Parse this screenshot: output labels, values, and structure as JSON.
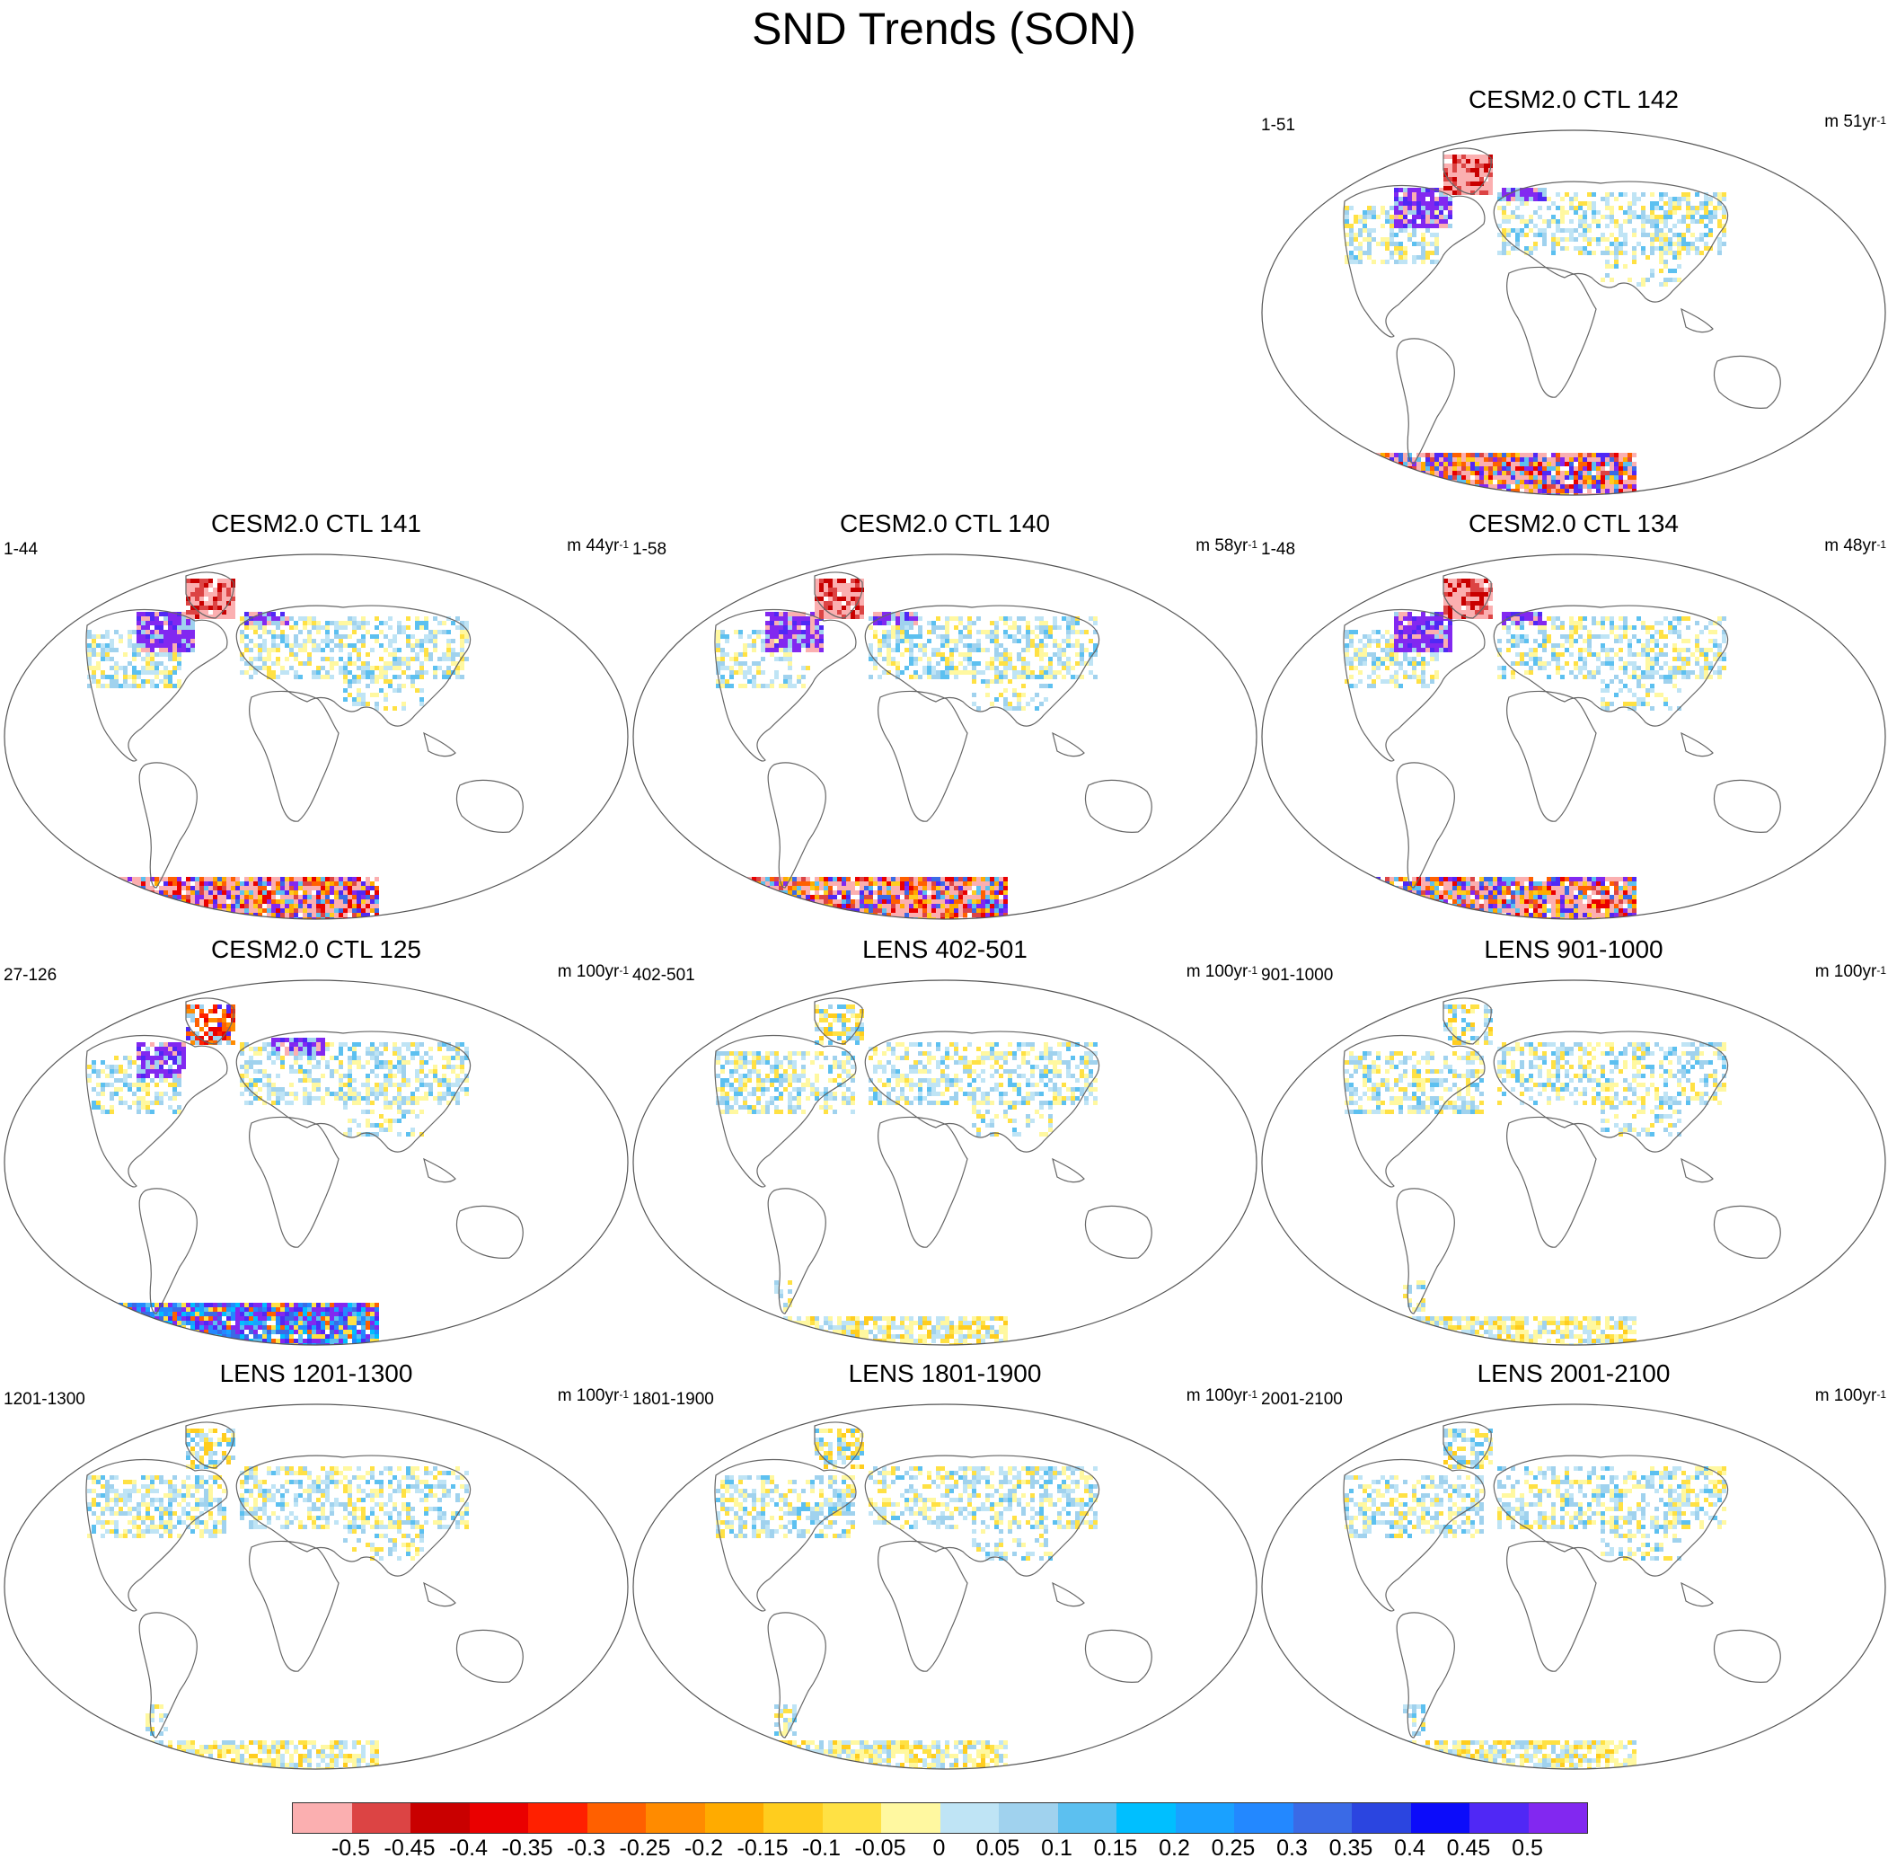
{
  "title": "SND Trends (SON)",
  "panels": [
    {
      "id": "ctl142",
      "title": "CESM2.0 CTL 142",
      "years": "1-51",
      "unit_prefix": "m 51yr",
      "unit_sup": "-1",
      "style": "ctl"
    },
    {
      "id": "ctl141",
      "title": "CESM2.0 CTL 141",
      "years": "1-44",
      "unit_prefix": "m 44yr",
      "unit_sup": "-1",
      "style": "ctl"
    },
    {
      "id": "ctl140",
      "title": "CESM2.0 CTL 140",
      "years": "1-58",
      "unit_prefix": "m 58yr",
      "unit_sup": "-1",
      "style": "ctl"
    },
    {
      "id": "ctl134",
      "title": "CESM2.0 CTL 134",
      "years": "1-48",
      "unit_prefix": "m 48yr",
      "unit_sup": "-1",
      "style": "ctl"
    },
    {
      "id": "ctl125",
      "title": "CESM2.0 CTL 125",
      "years": "27-126",
      "unit_prefix": "m 100yr",
      "unit_sup": "-1",
      "style": "ctl-blue"
    },
    {
      "id": "lens402",
      "title": "LENS 402-501",
      "years": "402-501",
      "unit_prefix": "m 100yr",
      "unit_sup": "-1",
      "style": "lens"
    },
    {
      "id": "lens901",
      "title": "LENS 901-1000",
      "years": "901-1000",
      "unit_prefix": "m 100yr",
      "unit_sup": "-1",
      "style": "lens"
    },
    {
      "id": "lens1201",
      "title": "LENS 1201-1300",
      "years": "1201-1300",
      "unit_prefix": "m 100yr",
      "unit_sup": "-1",
      "style": "lens"
    },
    {
      "id": "lens1801",
      "title": "LENS 1801-1900",
      "years": "1801-1900",
      "unit_prefix": "m 100yr",
      "unit_sup": "-1",
      "style": "lens"
    },
    {
      "id": "lens2001",
      "title": "LENS 2001-2100",
      "years": "2001-2100",
      "unit_prefix": "m 100yr",
      "unit_sup": "-1",
      "style": "lens"
    }
  ],
  "colorbar": {
    "colors": [
      "#fbafb0",
      "#dc4444",
      "#c90000",
      "#ea0000",
      "#ff2000",
      "#ff6000",
      "#ff8b00",
      "#ffab00",
      "#ffcd1e",
      "#ffe144",
      "#fff8a0",
      "#bfe4f5",
      "#a0d2ee",
      "#5cc0f0",
      "#00bfff",
      "#1aa1ff",
      "#2388ff",
      "#3a6ae6",
      "#2b45e0",
      "#0c0cfa",
      "#5028f5",
      "#8228f0"
    ],
    "labels": [
      "-0.5",
      "-0.45",
      "-0.4",
      "-0.35",
      "-0.3",
      "-0.25",
      "-0.2",
      "-0.15",
      "-0.1",
      "-0.05",
      "0",
      "0.05",
      "0.1",
      "0.15",
      "0.2",
      "0.25",
      "0.3",
      "0.35",
      "0.4",
      "0.45",
      "0.5"
    ]
  }
}
